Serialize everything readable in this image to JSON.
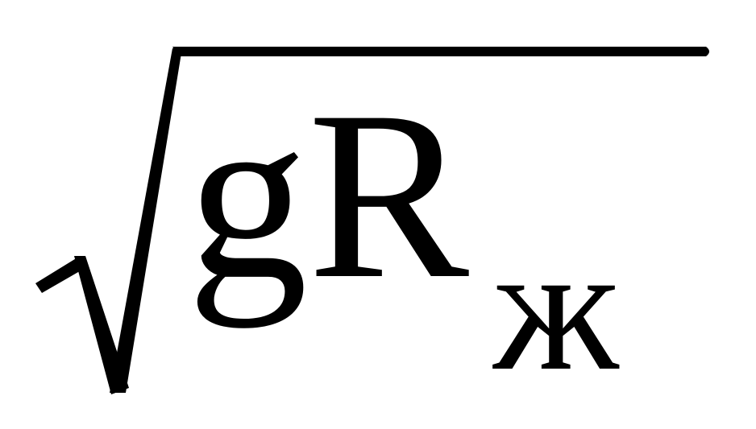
{
  "formula": {
    "radicand": "gR",
    "subscript": "ж"
  },
  "colors": {
    "ink": "#000000",
    "background": "#ffffff"
  }
}
